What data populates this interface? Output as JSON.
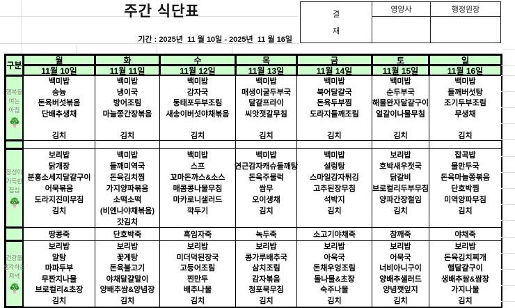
{
  "title": "주간 식단표",
  "period": "기간 : 2025년  11 월 10일 - 2025년  11 월 16일",
  "approval": {
    "label_top": "결",
    "label_bottom": "재",
    "columns": [
      "영양사",
      "행정원장"
    ]
  },
  "colors": {
    "header_green": "#ccffcc",
    "border_black": "#000000",
    "label_gray": "#808080"
  },
  "table": {
    "corner_label": "구분",
    "days": [
      {
        "name": "월",
        "date": "11월 10일"
      },
      {
        "name": "화",
        "date": "11월 11일"
      },
      {
        "name": "수",
        "date": "11월 12일"
      },
      {
        "name": "목",
        "date": "11월 13일"
      },
      {
        "name": "금",
        "date": "11월 14일"
      },
      {
        "name": "토",
        "date": "11월 15일"
      },
      {
        "name": "일",
        "date": "11월 16일"
      }
    ],
    "meals": [
      {
        "id": "breakfast",
        "label_lines": [
          "행복을",
          "여는",
          "아침"
        ],
        "menus": [
          [
            "백미밥",
            "숭늉",
            "돈육버섯볶음",
            "단배추생채",
            "",
            "김치"
          ],
          [
            "백미밥",
            "냉이국",
            "방어조림",
            "마늘쫑간장볶음",
            "",
            "김치"
          ],
          [
            "백미밥",
            "감자국",
            "동태포두부조림",
            "새송이버섯야채볶음",
            "",
            "김치"
          ],
          [
            "백미밥",
            "매생이굴두부국",
            "달걀프라이",
            "씨앗젓갈무침",
            "",
            "김치"
          ],
          [
            "백미밥",
            "북어달걀국",
            "돈육두부찜",
            "도라지들깨조림",
            "",
            "김치"
          ],
          [
            "백미밥",
            "순두부국",
            "해물완자달걀구이",
            "얼갈이나물무침",
            "",
            "김치"
          ],
          [
            "백미밥",
            "들깨버섯탕",
            "조기두부조림",
            "무생채",
            "",
            "김치"
          ]
        ]
      },
      {
        "id": "lunch",
        "label_lines": [
          "정성이",
          "가득한",
          "점심"
        ],
        "menus": [
          [
            "보리밥",
            "닭개장",
            "분홍소세지달걀구이",
            "어묵볶음",
            "도라지진미무침",
            "김치",
            ""
          ],
          [
            "백미밥",
            "들깨미역국",
            "돈육김치찜",
            "가지양파볶음",
            "소떡소떡",
            "(비엔나야채볶음)",
            "갓김치"
          ],
          [
            "백미밥",
            "스프",
            "꼬마돈까스&소스",
            "매콤콩나물무침",
            "마카로니샐러드",
            "깍두기",
            ""
          ],
          [
            "백미밥",
            "연근감자캐슈들깨탕",
            "돈육주물럭",
            "쌈무",
            "오이생채",
            "김치",
            ""
          ],
          [
            "백미밥",
            "설렁탕",
            "스마일감자튀김",
            "고추된장무침",
            "석박지",
            "김치",
            ""
          ],
          [
            "보리밥",
            "호박새우젓국",
            "닭갈비",
            "브로컬리두부무침",
            "양파간장절임",
            "김치",
            ""
          ],
          [
            "잡곡밥",
            "물만두국",
            "돈육마늘쫑볶음",
            "단호박찜",
            "미역양파무침",
            "김치",
            ""
          ]
        ]
      },
      {
        "id": "dinner",
        "label_lines": [
          "건강을",
          "생각하는",
          "저녁"
        ],
        "menus": [
          [
            "보리밥",
            "알탕",
            "마파두부",
            "무짠지나물",
            "브로컬리&초장",
            "김치"
          ],
          [
            "보리밥",
            "꽃게탕",
            "돈육불고기",
            "야채달걀말이",
            "양배추쌈&양념장",
            "김치"
          ],
          [
            "보리밥",
            "미더덕된장국",
            "고등어조림",
            "찐만두",
            "배추나물",
            "김치"
          ],
          [
            "보리밥",
            "콩가루배추국",
            "삼치조림",
            "감자볶음",
            "청포묵무침",
            "김치"
          ],
          [
            "보리밥",
            "아욱국",
            "돈채우엉조림",
            "돌나물&초장",
            "숙주나물",
            "김치"
          ],
          [
            "보리밥",
            "어묵국",
            "너비아니구이",
            "양배추샐러드",
            "양념깻잎지",
            "김치"
          ],
          [
            "보리밥",
            "돈육김치찌개",
            "햄달걀구이",
            "생배추쌈&쌈장",
            "가지나물",
            "김치"
          ]
        ]
      }
    ],
    "porridge": [
      "땅콩죽",
      "단호박죽",
      "흑임자죽",
      "녹두죽",
      "소고기야채죽",
      "참깨죽",
      "야채죽"
    ]
  }
}
